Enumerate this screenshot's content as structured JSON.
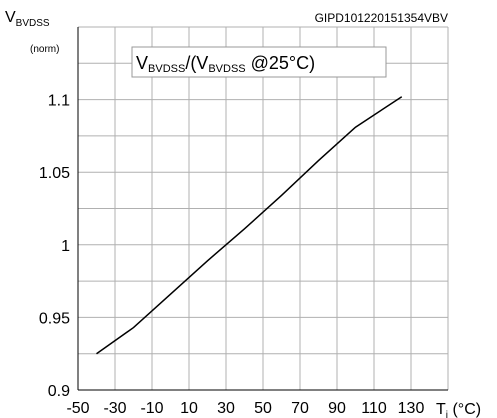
{
  "chart_data": {
    "type": "line",
    "ylabel": {
      "main": "V",
      "sub": "BVDSS"
    },
    "yunit": "(norm)",
    "code": "GIPD101220151354VBV",
    "legend": [
      "V",
      "BVDSS",
      "/(V",
      "BVDSS",
      " @25°C)"
    ],
    "xlabel": {
      "main": "T",
      "sub": "j",
      "rest": " (°C)"
    },
    "series": [
      {
        "name": "VBVDSS/(VBVDSS @25°C)",
        "color": "#000000",
        "x": [
          -40,
          -20,
          0,
          20,
          40,
          60,
          80,
          100,
          125
        ],
        "values": [
          0.925,
          0.943,
          0.966,
          0.989,
          1.011,
          1.034,
          1.058,
          1.081,
          1.102
        ]
      }
    ],
    "xlim": [
      -50,
      150
    ],
    "xticks": [
      -50,
      -30,
      -10,
      10,
      30,
      50,
      70,
      90,
      110,
      130
    ],
    "xgrid": [
      -50,
      -30,
      -10,
      10,
      30,
      50,
      70,
      90,
      110,
      130,
      150
    ],
    "ylim": [
      0.9,
      1.15
    ],
    "yticks": [
      0.9,
      0.95,
      1,
      1.05,
      1.1
    ],
    "ygrid": [
      0.925,
      0.95,
      0.975,
      1,
      1.025,
      1.05,
      1.075,
      1.1,
      1.125,
      1.15
    ],
    "grid": true
  }
}
